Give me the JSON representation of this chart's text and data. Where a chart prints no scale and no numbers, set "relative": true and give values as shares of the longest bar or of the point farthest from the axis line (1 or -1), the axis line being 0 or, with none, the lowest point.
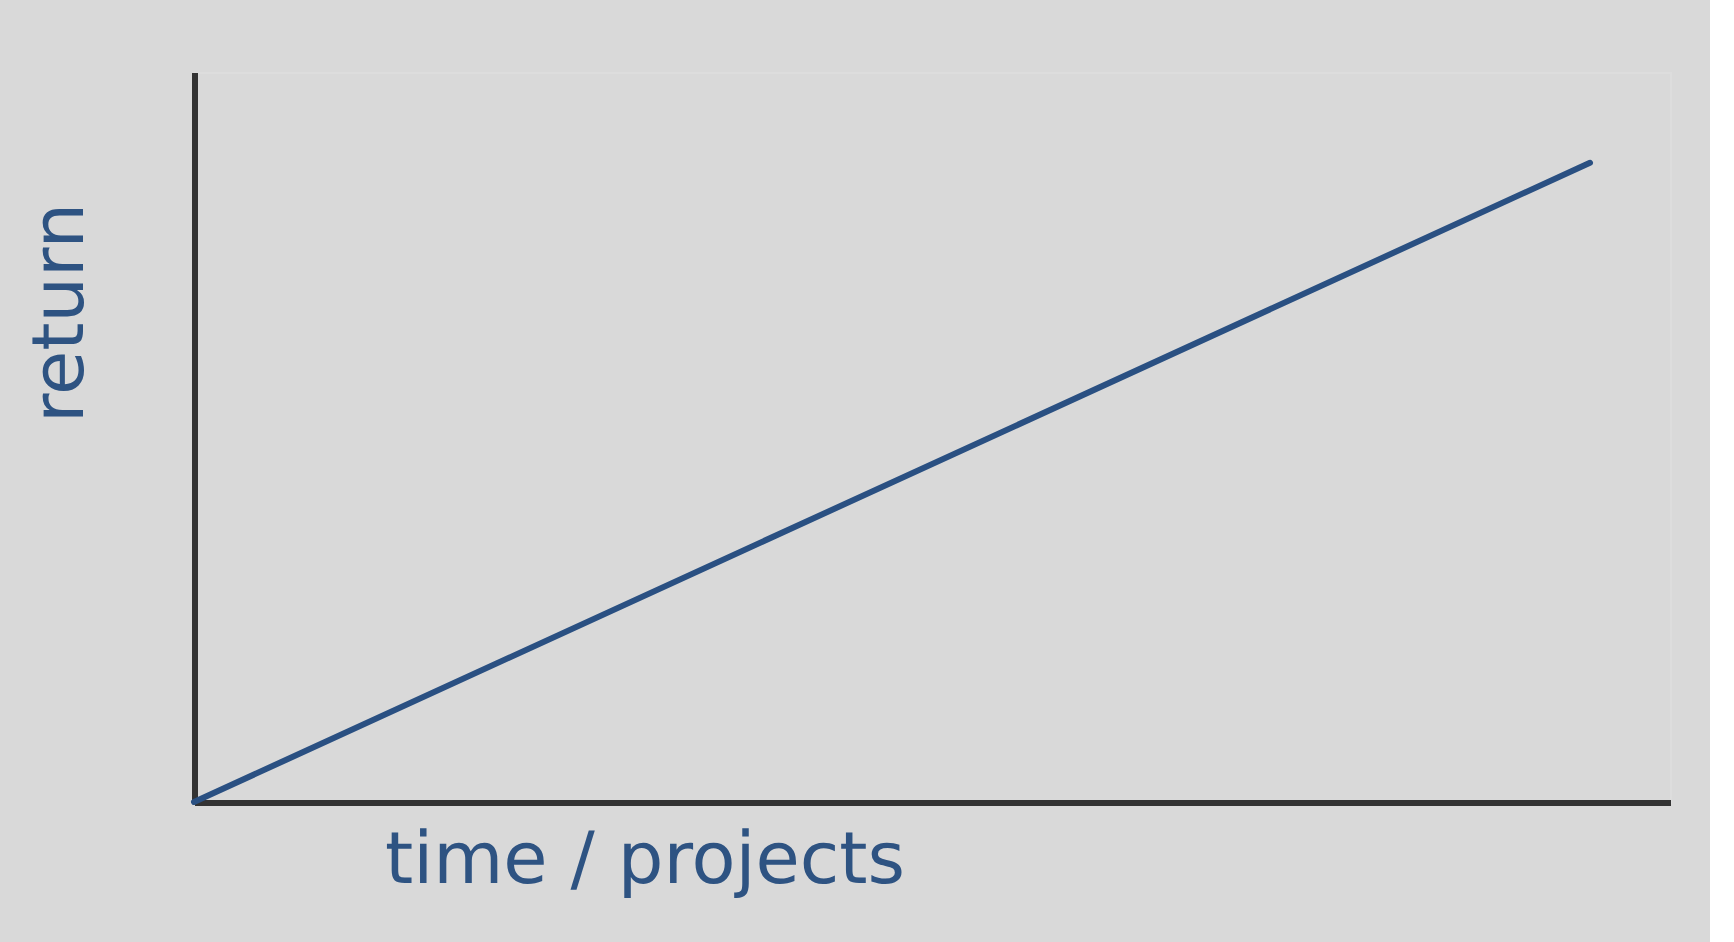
{
  "chart_data": {
    "type": "line",
    "xlabel": "time / projects",
    "ylabel": "return",
    "categories": [
      null,
      null
    ],
    "relative": true,
    "tick_labels": false,
    "series": [
      {
        "color": "#2a5082",
        "values": [
          0,
          1
        ]
      }
    ]
  }
}
